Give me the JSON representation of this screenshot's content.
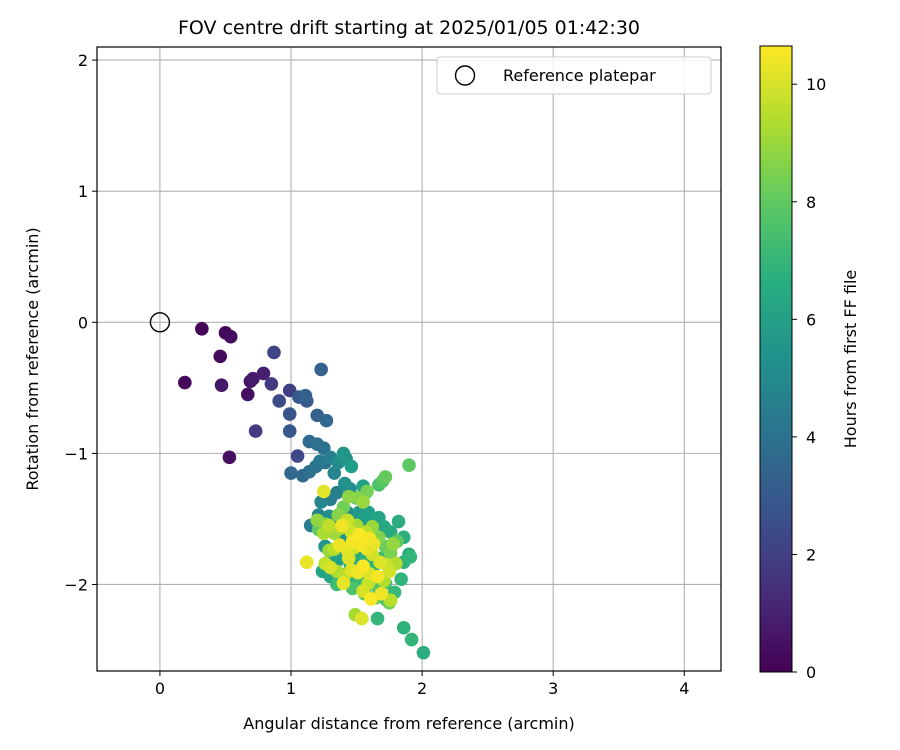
{
  "chart_data": {
    "type": "scatter",
    "title": "FOV centre drift starting at 2025/01/05 01:42:30",
    "xlabel": "Angular distance from reference (arcmin)",
    "ylabel": "Rotation from reference (arcmin)",
    "xlim": [
      -0.48,
      4.28
    ],
    "ylim": [
      -2.66,
      2.1
    ],
    "xticks": [
      0,
      1,
      2,
      3,
      4
    ],
    "xtick_labels": [
      "0",
      "1",
      "2",
      "3",
      "4"
    ],
    "yticks": [
      -2,
      -1,
      0,
      1,
      2
    ],
    "ytick_labels": [
      "−2",
      "−1",
      "0",
      "1",
      "2"
    ],
    "grid": true,
    "legend": {
      "placement": "top-right",
      "entries": [
        "Reference platepar"
      ]
    },
    "reference_point": {
      "x": 0,
      "y": 0,
      "label": "Reference platepar"
    },
    "colorbar": {
      "label": "Hours from first FF file",
      "colormap": "viridis",
      "range": [
        0,
        10.65
      ],
      "ticks": [
        0,
        2,
        4,
        6,
        8,
        10
      ],
      "tick_labels": [
        "0",
        "2",
        "4",
        "6",
        "8",
        "10"
      ]
    },
    "series": [
      {
        "points": [
          [
            0.32,
            -0.05,
            0.1
          ],
          [
            0.5,
            -0.08,
            0.2
          ],
          [
            0.54,
            -0.11,
            0.3
          ],
          [
            0.46,
            -0.26,
            0.3
          ],
          [
            0.19,
            -0.46,
            0.2
          ],
          [
            0.47,
            -0.48,
            0.7
          ],
          [
            0.67,
            -0.55,
            0.4
          ],
          [
            0.69,
            -0.45,
            0.6
          ],
          [
            0.71,
            -0.43,
            0.8
          ],
          [
            0.79,
            -0.39,
            0.9
          ],
          [
            0.53,
            -1.03,
            0.4
          ],
          [
            0.73,
            -0.83,
            1.8
          ],
          [
            0.85,
            -0.47,
            1.8
          ],
          [
            0.87,
            -0.23,
            2.2
          ],
          [
            0.99,
            -0.52,
            2.0
          ],
          [
            0.91,
            -0.6,
            2.4
          ],
          [
            0.99,
            -0.7,
            2.8
          ],
          [
            0.99,
            -0.83,
            2.9
          ],
          [
            1.05,
            -1.02,
            2.3
          ],
          [
            1.06,
            -0.57,
            3.0
          ],
          [
            1.11,
            -0.56,
            3.2
          ],
          [
            1.12,
            -0.6,
            2.9
          ],
          [
            1.23,
            -0.36,
            3.3
          ],
          [
            1.2,
            -0.71,
            3.3
          ],
          [
            1.27,
            -0.75,
            3.6
          ],
          [
            1.0,
            -1.15,
            3.5
          ],
          [
            1.09,
            -1.17,
            3.6
          ],
          [
            1.14,
            -0.91,
            3.7
          ],
          [
            1.2,
            -0.93,
            3.9
          ],
          [
            1.25,
            -0.96,
            4.0
          ],
          [
            1.14,
            -1.14,
            3.9
          ],
          [
            1.19,
            -1.1,
            4.1
          ],
          [
            1.22,
            -1.06,
            4.3
          ],
          [
            1.26,
            -1.07,
            4.1
          ],
          [
            1.3,
            -1.03,
            4.5
          ],
          [
            1.33,
            -1.15,
            4.8
          ],
          [
            1.36,
            -1.07,
            5.2
          ],
          [
            1.4,
            -1.0,
            5.6
          ],
          [
            1.42,
            -1.04,
            5.4
          ],
          [
            1.46,
            -1.1,
            5.9
          ],
          [
            1.41,
            -1.23,
            5.4
          ],
          [
            1.45,
            -1.27,
            5.2
          ],
          [
            1.5,
            -1.34,
            5.7
          ],
          [
            1.55,
            -1.25,
            6.0
          ],
          [
            1.57,
            -1.3,
            5.8
          ],
          [
            1.35,
            -1.3,
            4.6
          ],
          [
            1.3,
            -1.35,
            4.4
          ],
          [
            1.23,
            -1.37,
            4.9
          ],
          [
            1.21,
            -1.47,
            4.7
          ],
          [
            1.15,
            -1.55,
            4.5
          ],
          [
            1.25,
            -1.55,
            5.0
          ],
          [
            1.29,
            -1.48,
            5.3
          ],
          [
            1.33,
            -1.54,
            5.1
          ],
          [
            1.38,
            -1.48,
            4.9
          ],
          [
            1.43,
            -1.45,
            5.2
          ],
          [
            1.47,
            -1.52,
            5.5
          ],
          [
            1.52,
            -1.45,
            5.7
          ],
          [
            1.55,
            -1.51,
            5.9
          ],
          [
            1.59,
            -1.45,
            6.0
          ],
          [
            1.63,
            -1.52,
            5.8
          ],
          [
            1.67,
            -1.49,
            6.2
          ],
          [
            1.71,
            -1.56,
            6.4
          ],
          [
            1.76,
            -1.6,
            6.5
          ],
          [
            1.82,
            -1.52,
            6.6
          ],
          [
            1.86,
            -1.64,
            6.7
          ],
          [
            1.9,
            -1.77,
            6.5
          ],
          [
            1.86,
            -1.83,
            6.8
          ],
          [
            1.91,
            -1.79,
            7.0
          ],
          [
            1.84,
            -1.96,
            6.9
          ],
          [
            1.79,
            -2.06,
            7.1
          ],
          [
            1.86,
            -2.33,
            6.8
          ],
          [
            1.92,
            -2.42,
            7.0
          ],
          [
            2.01,
            -2.52,
            6.6
          ],
          [
            1.66,
            -2.26,
            7.0
          ],
          [
            1.73,
            -2.12,
            7.2
          ],
          [
            1.32,
            -1.6,
            5.3
          ],
          [
            1.38,
            -1.65,
            5.6
          ],
          [
            1.43,
            -1.62,
            5.4
          ],
          [
            1.48,
            -1.68,
            5.8
          ],
          [
            1.53,
            -1.63,
            6.1
          ],
          [
            1.26,
            -1.71,
            5.5
          ],
          [
            1.31,
            -1.78,
            5.7
          ],
          [
            1.35,
            -1.82,
            6.0
          ],
          [
            1.41,
            -1.76,
            6.2
          ],
          [
            1.45,
            -1.84,
            6.4
          ],
          [
            1.5,
            -1.79,
            6.5
          ],
          [
            1.56,
            -1.82,
            6.7
          ],
          [
            1.6,
            -1.76,
            6.9
          ],
          [
            1.64,
            -1.85,
            7.0
          ],
          [
            1.69,
            -1.8,
            7.2
          ],
          [
            1.24,
            -1.9,
            6.1
          ],
          [
            1.3,
            -1.94,
            6.3
          ],
          [
            1.36,
            -1.96,
            6.6
          ],
          [
            1.42,
            -1.92,
            6.8
          ],
          [
            1.47,
            -1.98,
            7.0
          ],
          [
            1.52,
            -1.95,
            7.2
          ],
          [
            1.57,
            -2.02,
            7.4
          ],
          [
            1.62,
            -1.97,
            7.6
          ],
          [
            1.67,
            -2.05,
            7.8
          ],
          [
            1.72,
            -1.99,
            7.5
          ],
          [
            1.35,
            -2.0,
            7.3
          ],
          [
            1.47,
            -2.03,
            7.6
          ],
          [
            1.56,
            -2.07,
            7.9
          ],
          [
            1.65,
            -2.1,
            8.1
          ],
          [
            1.75,
            -2.14,
            8.3
          ],
          [
            1.9,
            -1.09,
            7.9
          ],
          [
            1.7,
            -1.21,
            7.8
          ],
          [
            1.67,
            -1.24,
            7.6
          ],
          [
            1.72,
            -1.18,
            8.1
          ],
          [
            1.58,
            -1.29,
            8.4
          ],
          [
            1.51,
            -1.34,
            8.6
          ],
          [
            1.55,
            -1.37,
            9.0
          ],
          [
            1.44,
            -1.33,
            8.8
          ],
          [
            1.4,
            -1.41,
            8.3
          ],
          [
            1.36,
            -1.47,
            8.7
          ],
          [
            1.26,
            -1.54,
            8.5
          ],
          [
            1.21,
            -1.58,
            8.0
          ],
          [
            1.2,
            -1.51,
            8.9
          ],
          [
            1.25,
            -1.61,
            9.3
          ],
          [
            1.29,
            -1.55,
            9.6
          ],
          [
            1.33,
            -1.61,
            9.1
          ],
          [
            1.38,
            -1.57,
            9.4
          ],
          [
            1.43,
            -1.51,
            9.8
          ],
          [
            1.46,
            -1.6,
            9.9
          ],
          [
            1.5,
            -1.55,
            9.2
          ],
          [
            1.57,
            -1.6,
            9.6
          ],
          [
            1.62,
            -1.56,
            9.0
          ],
          [
            1.67,
            -1.64,
            8.6
          ],
          [
            1.72,
            -1.71,
            8.2
          ],
          [
            1.78,
            -1.69,
            8.9
          ],
          [
            1.81,
            -1.67,
            7.9
          ],
          [
            1.76,
            -1.76,
            8.5
          ],
          [
            1.8,
            -1.84,
            9.4
          ],
          [
            1.73,
            -1.85,
            9.7
          ],
          [
            1.68,
            -1.83,
            10.1
          ],
          [
            1.62,
            -1.77,
            9.9
          ],
          [
            1.58,
            -1.73,
            10.3
          ],
          [
            1.53,
            -1.7,
            10.5
          ],
          [
            1.48,
            -1.72,
            9.8
          ],
          [
            1.43,
            -1.74,
            10.2
          ],
          [
            1.37,
            -1.7,
            10.4
          ],
          [
            1.33,
            -1.73,
            9.5
          ],
          [
            1.29,
            -1.74,
            9.0
          ],
          [
            1.26,
            -1.84,
            9.7
          ],
          [
            1.3,
            -1.87,
            10.0
          ],
          [
            1.35,
            -1.9,
            9.3
          ],
          [
            1.41,
            -1.93,
            9.6
          ],
          [
            1.46,
            -1.89,
            10.2
          ],
          [
            1.51,
            -1.91,
            10.4
          ],
          [
            1.55,
            -1.86,
            10.6
          ],
          [
            1.6,
            -1.92,
            10.1
          ],
          [
            1.66,
            -1.94,
            10.5
          ],
          [
            1.71,
            -1.97,
            9.4
          ],
          [
            1.75,
            -1.9,
            9.9
          ],
          [
            1.59,
            -1.99,
            9.7
          ],
          [
            1.4,
            -1.99,
            10.3
          ],
          [
            1.55,
            -2.05,
            10.0
          ],
          [
            1.61,
            -2.11,
            10.6
          ],
          [
            1.69,
            -2.07,
            10.4
          ],
          [
            1.76,
            -2.12,
            9.5
          ],
          [
            1.49,
            -2.23,
            9.2
          ],
          [
            1.54,
            -2.26,
            10.1
          ],
          [
            1.12,
            -1.83,
            10.3
          ],
          [
            1.25,
            -1.29,
            10.2
          ],
          [
            1.47,
            -1.67,
            10.5
          ],
          [
            1.39,
            -1.55,
            10.4
          ],
          [
            1.52,
            -1.62,
            10.6
          ],
          [
            1.63,
            -1.69,
            10.3
          ],
          [
            1.44,
            -1.8,
            10.1
          ],
          [
            1.6,
            -1.65,
            10.5
          ]
        ]
      }
    ]
  }
}
